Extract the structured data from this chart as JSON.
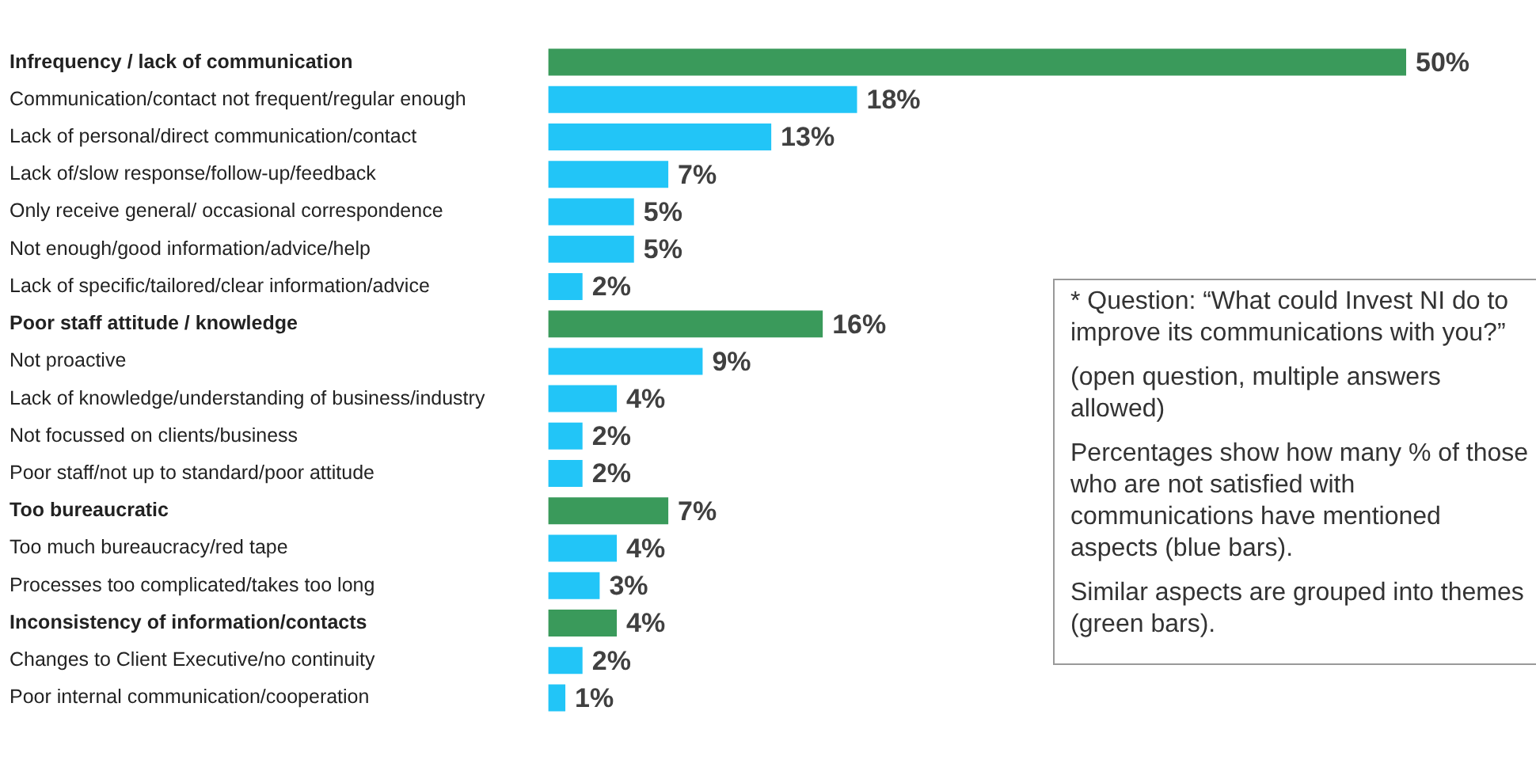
{
  "chart_data": {
    "type": "bar",
    "orientation": "horizontal",
    "categories": [
      "Infrequency / lack of communication",
      "Communication/contact not frequent/regular enough",
      "Lack of personal/direct communication/contact",
      "Lack of/slow response/follow-up/feedback",
      "Only receive general/ occasional correspondence",
      "Not enough/good information/advice/help",
      "Lack of specific/tailored/clear information/advice",
      "Poor staff attitude / knowledge",
      "Not proactive",
      "Lack of knowledge/understanding of business/industry",
      "Not focussed on clients/business",
      "Poor staff/not up to standard/poor attitude",
      "Too bureaucratic",
      "Too much bureaucracy/red tape",
      "Processes too complicated/takes too long",
      "Inconsistency of information/contacts",
      "Changes to Client Executive/no continuity",
      "Poor internal communication/cooperation"
    ],
    "values": [
      50,
      18,
      13,
      7,
      5,
      5,
      2,
      16,
      9,
      4,
      2,
      2,
      7,
      4,
      3,
      4,
      2,
      1
    ],
    "value_labels": [
      "50%",
      "18%",
      "13%",
      "7%",
      "5%",
      "5%",
      "2%",
      "16%",
      "9%",
      "4%",
      "2%",
      "2%",
      "7%",
      "4%",
      "3%",
      "4%",
      "2%",
      "1%"
    ],
    "colors": [
      "#3a9a5b",
      "#22c5f7",
      "#22c5f7",
      "#22c5f7",
      "#22c5f7",
      "#22c5f7",
      "#22c5f7",
      "#3a9a5b",
      "#22c5f7",
      "#22c5f7",
      "#22c5f7",
      "#22c5f7",
      "#3a9a5b",
      "#22c5f7",
      "#22c5f7",
      "#3a9a5b",
      "#22c5f7",
      "#22c5f7"
    ],
    "xlim": [
      0,
      50
    ],
    "tick_labels": "y",
    "grid": false,
    "legend": false,
    "annotations": [
      "* Question: “What could Invest NI do to improve its communications with you?”",
      "(open question, multiple answers allowed)",
      "Percentages show how many % of those who are not satisfied with communications have mentioned aspects (blue bars).",
      "Similar aspects are grouped into themes (green bars)."
    ]
  }
}
